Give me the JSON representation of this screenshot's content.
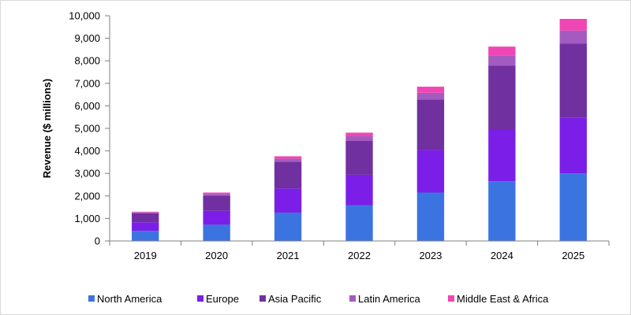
{
  "chart_data": {
    "type": "bar",
    "stacked": true,
    "title": "",
    "xlabel": "",
    "ylabel": "Revenue ($ millions)",
    "ylim": [
      0,
      10000
    ],
    "yticks": [
      "0",
      "1,000",
      "2,000",
      "3,000",
      "4,000",
      "5,000",
      "6,000",
      "7,000",
      "8,000",
      "9,000",
      "10,000"
    ],
    "categories": [
      "2019",
      "2020",
      "2021",
      "2022",
      "2023",
      "2024",
      "2025"
    ],
    "grid": false,
    "legend_position": "bottom",
    "series": [
      {
        "name": "North America",
        "color": "#3B74E0",
        "values": [
          450,
          720,
          1260,
          1590,
          2150,
          2650,
          3000
        ]
      },
      {
        "name": "Europe",
        "color": "#7B1FE8",
        "values": [
          380,
          620,
          1070,
          1350,
          1890,
          2280,
          2480
        ]
      },
      {
        "name": "Asia Pacific",
        "color": "#7030A0",
        "values": [
          400,
          680,
          1190,
          1500,
          2240,
          2850,
          3280
        ]
      },
      {
        "name": "Latin America",
        "color": "#A35BBF",
        "values": [
          40,
          70,
          130,
          210,
          300,
          450,
          580
        ]
      },
      {
        "name": "Middle East & Africa",
        "color": "#F046B4",
        "values": [
          30,
          60,
          110,
          160,
          270,
          400,
          520
        ]
      }
    ]
  }
}
